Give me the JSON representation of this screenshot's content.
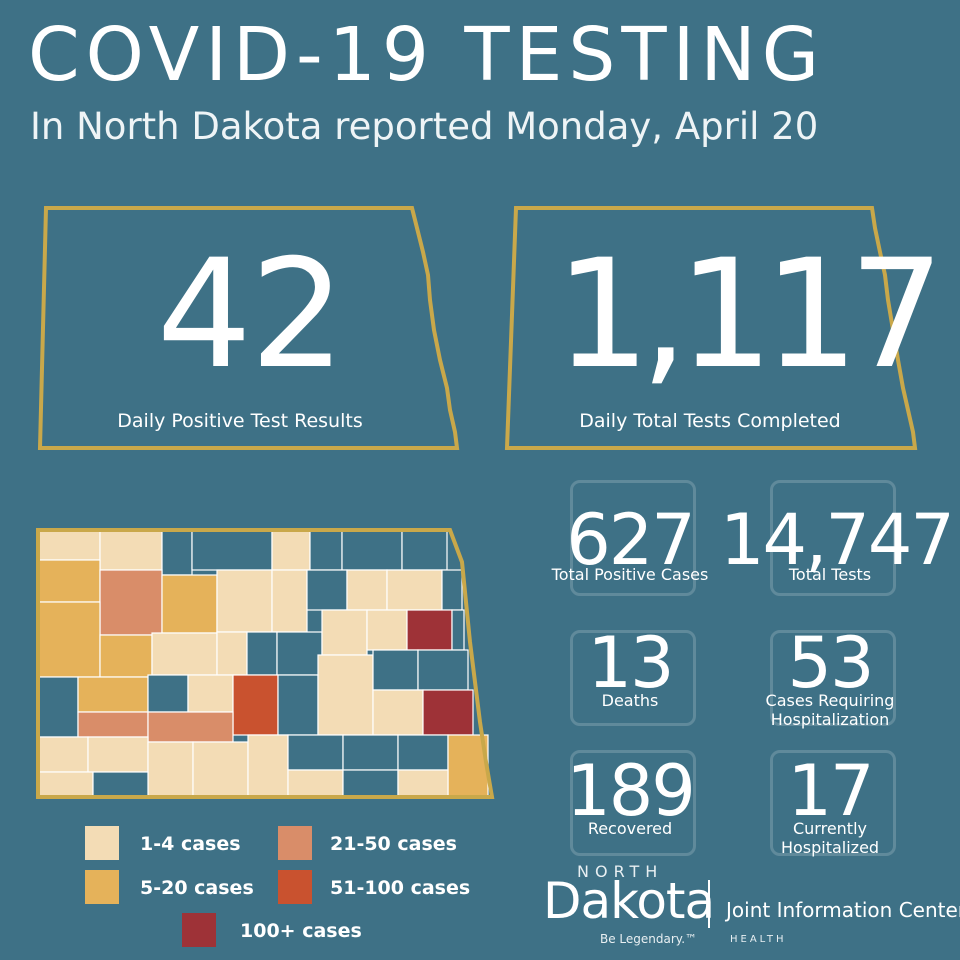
{
  "header": {
    "title": "COVID-19 TESTING",
    "subtitle": "In North Dakota reported Monday, April 20"
  },
  "daily_positive": {
    "value": "42",
    "label": "Daily Positive Test Results"
  },
  "daily_tests": {
    "value": "1,117",
    "label": "Daily Total Tests Completed"
  },
  "stats": {
    "total_positive": {
      "value": "627",
      "label": "Total Positive Cases",
      "icon": "lab-flask-icon"
    },
    "total_tests": {
      "value": "14,747",
      "label": "Total Tests",
      "icon": "microscope-icon"
    },
    "deaths": {
      "value": "13",
      "label": "Deaths",
      "icon": "hospital-bed-icon"
    },
    "hospitalization": {
      "value": "53",
      "label_line1": "Cases Requiring",
      "label_line2": "Hospitalization",
      "icon": "hospital-bed-icon"
    },
    "recovered": {
      "value": "189",
      "label": "Recovered",
      "icon": "tablet-icon"
    },
    "currently": {
      "value": "17",
      "label_line1": "Currently",
      "label_line2": "Hospitalized",
      "icon": "patient-bed-icon"
    }
  },
  "legend": [
    {
      "label": "1-4 cases",
      "color": "#f3dcb5"
    },
    {
      "label": "21-50 cases",
      "color": "#d98d69"
    },
    {
      "label": "5-20 cases",
      "color": "#e5b25a"
    },
    {
      "label": "51-100 cases",
      "color": "#c9522f"
    },
    {
      "label": "100+ cases",
      "color": "#9e3237"
    }
  ],
  "colors": {
    "background": "#3e7186",
    "outline": "#c9a84a",
    "none": "#3e7186"
  },
  "branding": {
    "north": "NORTH",
    "dakota": "Dakota",
    "tagline": "Be Legendary.™",
    "agency": "Joint Information Center",
    "division": "HEALTH"
  }
}
